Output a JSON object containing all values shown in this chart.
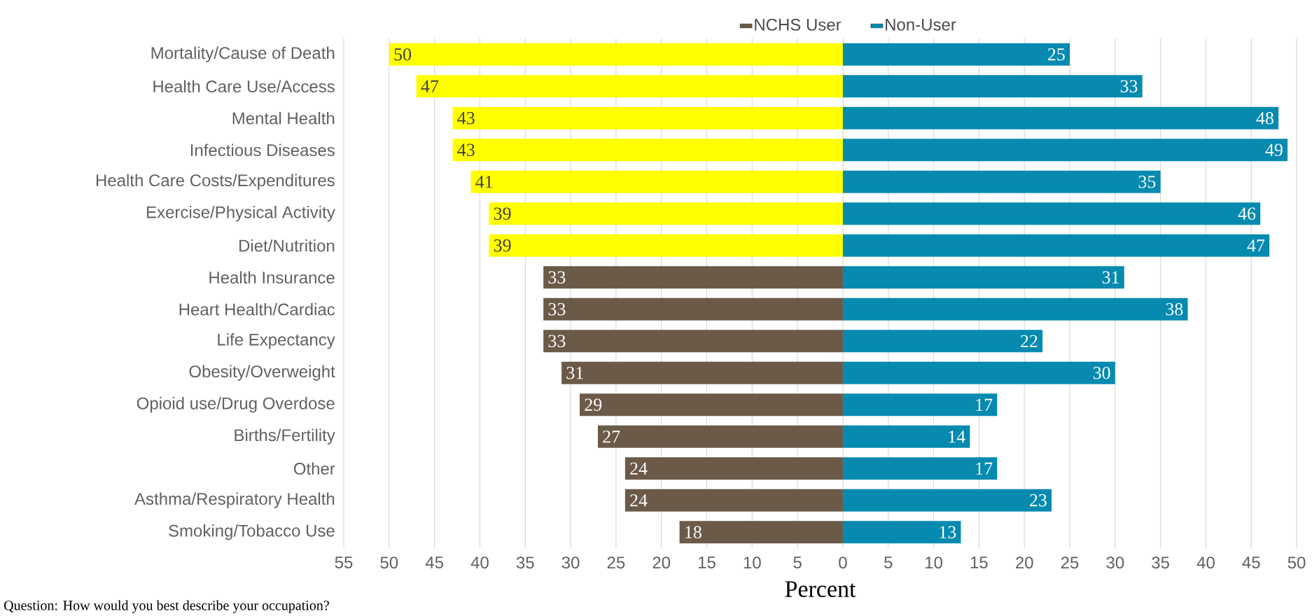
{
  "chart_data": {
    "type": "bar",
    "orientation": "horizontal",
    "xlabel": "Percent",
    "legend": "top",
    "grid": "x",
    "categories": [
      "Mortality/Cause of Death",
      "Health Care Use/Access",
      "Mental Health",
      "Infectious Diseases",
      "Health Care Costs/Expenditures",
      "Exercise/Physical Activity",
      "Diet/Nutrition",
      "Health Insurance",
      "Heart Health/Cardiac",
      "Life Expectancy",
      "Obesity/Overweight",
      "Opioid use/Drug Overdose",
      "Births/Fertility",
      "Other",
      "Asthma/Respiratory Health",
      "Smoking/Tobacco Use"
    ],
    "series": [
      {
        "name": "NCHS User",
        "color": "#6b5a48",
        "colors": [
          "#ffff00",
          "#ffff00",
          "#ffff00",
          "#ffff00",
          "#ffff00",
          "#ffff00",
          "#ffff00",
          "#6b5a48",
          "#6b5a48",
          "#6b5a48",
          "#6b5a48",
          "#6b5a48",
          "#6b5a48",
          "#6b5a48",
          "#6b5a48",
          "#6b5a48"
        ],
        "values": [
          50,
          47,
          43,
          43,
          41,
          39,
          39,
          33,
          33,
          33,
          31,
          29,
          27,
          24,
          24,
          18
        ],
        "base": [
          -50,
          -47,
          -43,
          -43,
          -41,
          -39,
          -39,
          -33,
          -33,
          -33,
          -31,
          -29,
          -27,
          -24,
          -24,
          -18
        ],
        "value_labels": [
          "50",
          "47",
          "43",
          "43",
          "41",
          "39",
          "39",
          "33",
          "33",
          "33",
          "31",
          "29",
          "27",
          "24",
          "24",
          "18"
        ]
      },
      {
        "name": "Non-User",
        "color": "#068ab0",
        "values": [
          25,
          33,
          48,
          49,
          35,
          46,
          47,
          31,
          38,
          22,
          30,
          17,
          14,
          17,
          23,
          13
        ],
        "value_labels": [
          "25",
          "33",
          "48",
          "49",
          "35",
          "46",
          "47",
          "31",
          "38",
          "22",
          "30",
          "17",
          "14",
          "17",
          "23",
          "13"
        ]
      }
    ],
    "xlim": [
      -55,
      50
    ],
    "xticks": [
      {
        "value": -55,
        "label": "55"
      },
      {
        "value": -50,
        "label": "50"
      },
      {
        "value": -45,
        "label": "45"
      },
      {
        "value": -40,
        "label": "40"
      },
      {
        "value": -35,
        "label": "35"
      },
      {
        "value": -30,
        "label": "30"
      },
      {
        "value": -25,
        "label": "25"
      },
      {
        "value": -20,
        "label": "20"
      },
      {
        "value": -15,
        "label": "15"
      },
      {
        "value": -10,
        "label": "10"
      },
      {
        "value": -5,
        "label": "5"
      },
      0,
      5,
      10,
      15,
      20,
      25,
      30,
      35,
      40,
      45,
      50
    ],
    "annotations": [
      "Question: How would you best describe your occupation?"
    ]
  }
}
